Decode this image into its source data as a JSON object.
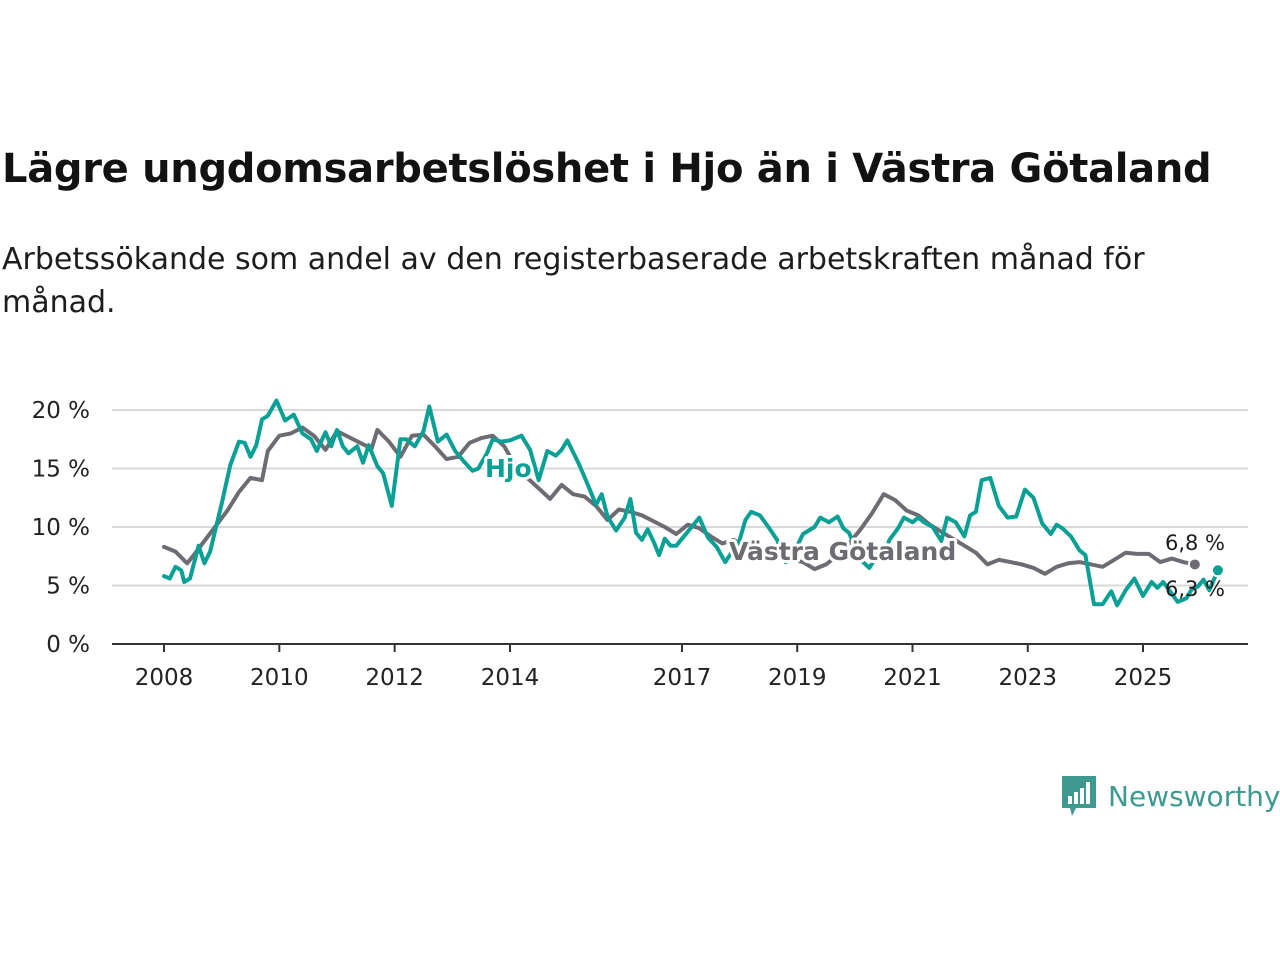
{
  "title": "Lägre ungdomsarbetslöshet i Hjo än i Västra Götaland",
  "subtitle": "Arbetssökande som andel av den registerbaserade arbetskraften månad för månad.",
  "brand": "Newsworthy",
  "colors": {
    "hjo": "#0aa095",
    "vg": "#6e6b72",
    "grid": "#d9d9d9",
    "axis": "#333333"
  },
  "chart_data": {
    "type": "line",
    "ylim": [
      0,
      20
    ],
    "xlim": [
      2008.0,
      2026.3
    ],
    "y_ticks": [
      0,
      5,
      10,
      15,
      20
    ],
    "y_tick_labels": [
      "0 %",
      "5 %",
      "10 %",
      "15 %",
      "20 %"
    ],
    "x_ticks": [
      2008,
      2010,
      2012,
      2014,
      2017,
      2019,
      2021,
      2023,
      2025
    ],
    "x_tick_labels": [
      "2008",
      "2010",
      "2012",
      "2014",
      "2017",
      "2019",
      "2021",
      "2023",
      "2025"
    ],
    "series": [
      {
        "name": "Västra Götaland",
        "label": "Västra Götaland",
        "end_label": "6,8 %",
        "points": [
          [
            2008.0,
            8.3
          ],
          [
            2008.2,
            7.9
          ],
          [
            2008.4,
            6.9
          ],
          [
            2008.5,
            7.5
          ],
          [
            2008.7,
            8.8
          ],
          [
            2008.9,
            10.1
          ],
          [
            2009.1,
            11.4
          ],
          [
            2009.3,
            13.0
          ],
          [
            2009.5,
            14.2
          ],
          [
            2009.7,
            14.0
          ],
          [
            2009.8,
            16.5
          ],
          [
            2010.0,
            17.8
          ],
          [
            2010.2,
            18.0
          ],
          [
            2010.4,
            18.5
          ],
          [
            2010.6,
            17.8
          ],
          [
            2010.8,
            16.6
          ],
          [
            2011.0,
            18.2
          ],
          [
            2011.2,
            17.7
          ],
          [
            2011.4,
            17.2
          ],
          [
            2011.6,
            16.7
          ],
          [
            2011.7,
            18.3
          ],
          [
            2011.9,
            17.3
          ],
          [
            2012.1,
            16.0
          ],
          [
            2012.3,
            17.8
          ],
          [
            2012.5,
            17.9
          ],
          [
            2012.7,
            16.9
          ],
          [
            2012.9,
            15.8
          ],
          [
            2013.1,
            16.0
          ],
          [
            2013.3,
            17.2
          ],
          [
            2013.5,
            17.6
          ],
          [
            2013.7,
            17.8
          ],
          [
            2013.9,
            16.9
          ],
          [
            2014.1,
            15.2
          ],
          [
            2014.3,
            14.2
          ],
          [
            2014.5,
            13.3
          ],
          [
            2014.7,
            12.4
          ],
          [
            2014.9,
            13.6
          ],
          [
            2015.1,
            12.8
          ],
          [
            2015.3,
            12.6
          ],
          [
            2015.5,
            11.8
          ],
          [
            2015.7,
            10.6
          ],
          [
            2015.9,
            11.5
          ],
          [
            2016.1,
            11.3
          ],
          [
            2016.3,
            11.0
          ],
          [
            2016.5,
            10.5
          ],
          [
            2016.7,
            10.0
          ],
          [
            2016.9,
            9.4
          ],
          [
            2017.1,
            10.2
          ],
          [
            2017.3,
            9.9
          ],
          [
            2017.5,
            9.2
          ],
          [
            2017.7,
            8.6
          ],
          [
            2017.9,
            8.9
          ],
          [
            2018.1,
            8.2
          ],
          [
            2018.3,
            8.0
          ],
          [
            2018.5,
            7.6
          ],
          [
            2018.7,
            7.8
          ],
          [
            2018.9,
            7.2
          ],
          [
            2019.1,
            7.0
          ],
          [
            2019.3,
            6.4
          ],
          [
            2019.5,
            6.8
          ],
          [
            2019.7,
            7.6
          ],
          [
            2019.9,
            8.6
          ],
          [
            2020.1,
            9.8
          ],
          [
            2020.3,
            11.2
          ],
          [
            2020.5,
            12.8
          ],
          [
            2020.7,
            12.3
          ],
          [
            2020.9,
            11.4
          ],
          [
            2021.1,
            11.0
          ],
          [
            2021.3,
            10.2
          ],
          [
            2021.5,
            9.6
          ],
          [
            2021.7,
            9.0
          ],
          [
            2021.9,
            8.4
          ],
          [
            2022.1,
            7.8
          ],
          [
            2022.3,
            6.8
          ],
          [
            2022.5,
            7.2
          ],
          [
            2022.7,
            7.0
          ],
          [
            2022.9,
            6.8
          ],
          [
            2023.1,
            6.5
          ],
          [
            2023.3,
            6.0
          ],
          [
            2023.5,
            6.6
          ],
          [
            2023.7,
            6.9
          ],
          [
            2023.9,
            7.0
          ],
          [
            2024.1,
            6.8
          ],
          [
            2024.3,
            6.6
          ],
          [
            2024.5,
            7.2
          ],
          [
            2024.7,
            7.8
          ],
          [
            2024.9,
            7.7
          ],
          [
            2025.1,
            7.7
          ],
          [
            2025.3,
            7.0
          ],
          [
            2025.5,
            7.3
          ],
          [
            2025.7,
            7.0
          ],
          [
            2025.9,
            6.8
          ]
        ]
      },
      {
        "name": "Hjo",
        "label": "Hjo",
        "end_label": "6,3 %",
        "points": [
          [
            2008.0,
            5.8
          ],
          [
            2008.1,
            5.6
          ],
          [
            2008.2,
            6.6
          ],
          [
            2008.3,
            6.3
          ],
          [
            2008.35,
            5.3
          ],
          [
            2008.45,
            5.6
          ],
          [
            2008.6,
            8.4
          ],
          [
            2008.7,
            6.9
          ],
          [
            2008.8,
            7.9
          ],
          [
            2009.0,
            12.0
          ],
          [
            2009.15,
            15.3
          ],
          [
            2009.3,
            17.3
          ],
          [
            2009.4,
            17.2
          ],
          [
            2009.5,
            16.0
          ],
          [
            2009.6,
            17.0
          ],
          [
            2009.7,
            19.2
          ],
          [
            2009.8,
            19.5
          ],
          [
            2009.95,
            20.8
          ],
          [
            2010.1,
            19.1
          ],
          [
            2010.25,
            19.6
          ],
          [
            2010.4,
            18.0
          ],
          [
            2010.55,
            17.5
          ],
          [
            2010.65,
            16.5
          ],
          [
            2010.8,
            18.1
          ],
          [
            2010.9,
            16.9
          ],
          [
            2011.0,
            18.3
          ],
          [
            2011.1,
            16.9
          ],
          [
            2011.2,
            16.3
          ],
          [
            2011.35,
            16.9
          ],
          [
            2011.45,
            15.5
          ],
          [
            2011.55,
            17.0
          ],
          [
            2011.7,
            15.2
          ],
          [
            2011.8,
            14.6
          ],
          [
            2011.95,
            11.8
          ],
          [
            2012.1,
            17.5
          ],
          [
            2012.2,
            17.5
          ],
          [
            2012.35,
            16.9
          ],
          [
            2012.5,
            18.2
          ],
          [
            2012.6,
            20.3
          ],
          [
            2012.75,
            17.3
          ],
          [
            2012.9,
            17.9
          ],
          [
            2013.05,
            16.5
          ],
          [
            2013.2,
            15.6
          ],
          [
            2013.35,
            14.8
          ],
          [
            2013.45,
            15.0
          ],
          [
            2013.6,
            16.3
          ],
          [
            2013.7,
            17.5
          ],
          [
            2013.85,
            17.3
          ],
          [
            2014.0,
            17.4
          ],
          [
            2014.2,
            17.8
          ],
          [
            2014.35,
            16.6
          ],
          [
            2014.5,
            14.0
          ],
          [
            2014.65,
            16.5
          ],
          [
            2014.8,
            16.1
          ],
          [
            2014.9,
            16.6
          ],
          [
            2015.0,
            17.4
          ],
          [
            2015.2,
            15.4
          ],
          [
            2015.35,
            13.7
          ],
          [
            2015.5,
            11.9
          ],
          [
            2015.6,
            12.8
          ],
          [
            2015.7,
            10.9
          ],
          [
            2015.85,
            9.7
          ],
          [
            2016.0,
            10.8
          ],
          [
            2016.1,
            12.4
          ],
          [
            2016.2,
            9.5
          ],
          [
            2016.3,
            8.9
          ],
          [
            2016.4,
            9.8
          ],
          [
            2016.5,
            8.8
          ],
          [
            2016.6,
            7.6
          ],
          [
            2016.7,
            9.0
          ],
          [
            2016.8,
            8.4
          ],
          [
            2016.9,
            8.4
          ],
          [
            2017.0,
            9.0
          ],
          [
            2017.1,
            9.6
          ],
          [
            2017.3,
            10.8
          ],
          [
            2017.45,
            9.1
          ],
          [
            2017.6,
            8.3
          ],
          [
            2017.75,
            7.0
          ],
          [
            2017.9,
            8.1
          ],
          [
            2018.0,
            8.9
          ],
          [
            2018.1,
            10.6
          ],
          [
            2018.2,
            11.3
          ],
          [
            2018.35,
            11.0
          ],
          [
            2018.5,
            10.0
          ],
          [
            2018.65,
            8.9
          ],
          [
            2018.8,
            7.0
          ],
          [
            2018.95,
            7.9
          ],
          [
            2019.1,
            9.4
          ],
          [
            2019.3,
            10.0
          ],
          [
            2019.4,
            10.8
          ],
          [
            2019.55,
            10.4
          ],
          [
            2019.7,
            10.9
          ],
          [
            2019.8,
            9.9
          ],
          [
            2019.9,
            9.5
          ],
          [
            2020.0,
            8.3
          ],
          [
            2020.1,
            7.2
          ],
          [
            2020.25,
            6.5
          ],
          [
            2020.4,
            7.7
          ],
          [
            2020.5,
            7.4
          ],
          [
            2020.6,
            8.9
          ],
          [
            2020.75,
            9.9
          ],
          [
            2020.85,
            10.8
          ],
          [
            2021.0,
            10.4
          ],
          [
            2021.1,
            10.8
          ],
          [
            2021.2,
            10.4
          ],
          [
            2021.35,
            10.0
          ],
          [
            2021.5,
            8.8
          ],
          [
            2021.6,
            10.8
          ],
          [
            2021.75,
            10.4
          ],
          [
            2021.9,
            9.2
          ],
          [
            2022.0,
            11.0
          ],
          [
            2022.1,
            11.3
          ],
          [
            2022.2,
            14.0
          ],
          [
            2022.35,
            14.2
          ],
          [
            2022.5,
            11.8
          ],
          [
            2022.65,
            10.8
          ],
          [
            2022.8,
            10.9
          ],
          [
            2022.95,
            13.2
          ],
          [
            2023.1,
            12.5
          ],
          [
            2023.25,
            10.3
          ],
          [
            2023.4,
            9.4
          ],
          [
            2023.5,
            10.2
          ],
          [
            2023.6,
            9.9
          ],
          [
            2023.75,
            9.2
          ],
          [
            2023.9,
            8.0
          ],
          [
            2024.0,
            7.6
          ],
          [
            2024.15,
            3.4
          ],
          [
            2024.3,
            3.4
          ],
          [
            2024.45,
            4.5
          ],
          [
            2024.55,
            3.3
          ],
          [
            2024.7,
            4.6
          ],
          [
            2024.85,
            5.6
          ],
          [
            2025.0,
            4.1
          ],
          [
            2025.15,
            5.3
          ],
          [
            2025.25,
            4.8
          ],
          [
            2025.35,
            5.3
          ],
          [
            2025.5,
            4.3
          ],
          [
            2025.6,
            3.6
          ],
          [
            2025.75,
            3.9
          ],
          [
            2025.85,
            4.7
          ],
          [
            2025.95,
            4.9
          ],
          [
            2026.05,
            5.5
          ],
          [
            2026.15,
            4.6
          ],
          [
            2026.3,
            6.3
          ]
        ]
      }
    ]
  }
}
